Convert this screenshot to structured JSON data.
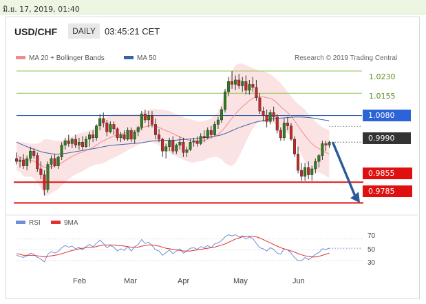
{
  "header": {
    "datetime": "มิ.ย. 17, 2019, 01:40"
  },
  "chart_title": {
    "pair": "USD/CHF",
    "timeframe": "DAILY",
    "time": "03:45:21 CET"
  },
  "legend": {
    "items": [
      {
        "label": "MA 20 + Bollinger Bands",
        "color": "#f08c8c"
      },
      {
        "label": "MA 50",
        "color": "#3a62a8"
      }
    ],
    "research": "Research © 2019 Trading Central"
  },
  "rsi_legend": {
    "items": [
      {
        "label": "RSI",
        "color": "#6f8ed8"
      },
      {
        "label": "9MA",
        "color": "#e03030"
      }
    ]
  },
  "levels": {
    "l1023": "1.0230",
    "l10155": "1.0155",
    "l1008": "1.0080",
    "l0999": "0.9990",
    "l09855": "0.9855",
    "l09785": "0.9785"
  },
  "months": [
    "Feb",
    "Mar",
    "Apr",
    "May",
    "Jun"
  ],
  "rsi_ticks": [
    "70",
    "50",
    "30"
  ],
  "colors": {
    "up": "#2e7d1e",
    "down": "#c62828",
    "band": "#fbd9d9",
    "ma20": "#f08c8c",
    "ma50": "#3a62a8",
    "res": "#8bc34a",
    "blue_line": "#2a5caa",
    "support": "#e01010",
    "dark": "#333333"
  },
  "chart_data": [
    {
      "type": "candlestick",
      "title": "USD/CHF DAILY",
      "ylim": [
        0.9765,
        1.0265
      ],
      "candles": [
        [
          0.9935,
          0.9955,
          0.9915,
          0.9925
        ],
        [
          0.9925,
          0.994,
          0.9905,
          0.993
        ],
        [
          0.993,
          0.995,
          0.99,
          0.991
        ],
        [
          0.991,
          0.9945,
          0.9895,
          0.9935
        ],
        [
          0.9935,
          0.9975,
          0.992,
          0.996
        ],
        [
          0.996,
          0.997,
          0.9935,
          0.9945
        ],
        [
          0.9945,
          0.9955,
          0.989,
          0.99
        ],
        [
          0.99,
          0.9925,
          0.9865,
          0.988
        ],
        [
          0.988,
          0.9895,
          0.981,
          0.983
        ],
        [
          0.983,
          0.9925,
          0.982,
          0.9915
        ],
        [
          0.9915,
          0.9945,
          0.99,
          0.9935
        ],
        [
          0.9935,
          0.995,
          0.9905,
          0.991
        ],
        [
          0.991,
          0.9945,
          0.99,
          0.994
        ],
        [
          0.994,
          0.999,
          0.993,
          0.998
        ],
        [
          0.998,
          1.0005,
          0.9965,
          0.9995
        ],
        [
          0.9995,
          1.0015,
          0.9975,
          0.9985
        ],
        [
          0.9985,
          1.0005,
          0.997,
          1.0
        ],
        [
          1.0,
          1.0015,
          0.997,
          0.998
        ],
        [
          0.998,
          1.0005,
          0.9965,
          0.999
        ],
        [
          0.999,
          1.001,
          0.9965,
          0.9975
        ],
        [
          0.9975,
          1.001,
          0.997,
          1.0
        ],
        [
          1.0,
          1.0025,
          0.9975,
          1.0015
        ],
        [
          1.0015,
          1.003,
          0.999,
          1.0005
        ],
        [
          1.0005,
          1.005,
          0.9995,
          1.0045
        ],
        [
          1.0045,
          1.0085,
          1.003,
          1.007
        ],
        [
          1.007,
          1.009,
          1.004,
          1.0055
        ],
        [
          1.0055,
          1.0065,
          1.001,
          1.0025
        ],
        [
          1.0025,
          1.006,
          1.002,
          1.005
        ],
        [
          1.005,
          1.006,
          1.0015,
          1.0035
        ],
        [
          1.0035,
          1.004,
          0.9995,
          1.0005
        ],
        [
          1.0005,
          1.0025,
          0.999,
          1.0015
        ],
        [
          1.0015,
          1.003,
          0.9995,
          1.0
        ],
        [
          1.0,
          1.004,
          0.9995,
          1.003
        ],
        [
          1.003,
          1.004,
          0.999,
          1.0
        ],
        [
          1.0,
          1.003,
          0.9985,
          1.0025
        ],
        [
          1.0025,
          1.0045,
          1.001,
          1.004
        ],
        [
          1.004,
          1.0095,
          1.003,
          1.0085
        ],
        [
          1.0085,
          1.01,
          1.0055,
          1.0065
        ],
        [
          1.0065,
          1.0095,
          1.004,
          1.008
        ],
        [
          1.008,
          1.0095,
          1.004,
          1.005
        ],
        [
          1.005,
          1.007,
          1.0,
          1.0015
        ],
        [
          1.0015,
          1.0035,
          0.999,
          1.0
        ],
        [
          1.0,
          1.0005,
          0.994,
          0.996
        ],
        [
          0.996,
          0.9985,
          0.9935,
          0.9975
        ],
        [
          0.9975,
          1.0005,
          0.996,
          0.9995
        ],
        [
          0.9995,
          1.001,
          0.995,
          0.996
        ],
        [
          0.996,
          0.9985,
          0.995,
          0.998
        ],
        [
          0.998,
          1.001,
          0.9965,
          0.999
        ],
        [
          0.999,
          1.0005,
          0.994,
          0.9955
        ],
        [
          0.9955,
          0.9975,
          0.994,
          0.9965
        ],
        [
          0.9965,
          1.0,
          0.996,
          0.999
        ],
        [
          0.999,
          1.0005,
          0.9975,
          0.9995
        ],
        [
          0.9995,
          1.001,
          0.9975,
          0.9985
        ],
        [
          0.9985,
          1.002,
          0.998,
          1.001
        ],
        [
          1.001,
          1.003,
          0.999,
          1.0005
        ],
        [
          1.0005,
          1.004,
          1.0,
          1.003
        ],
        [
          1.003,
          1.0045,
          1.0005,
          1.0015
        ],
        [
          1.0015,
          1.006,
          1.001,
          1.005
        ],
        [
          1.005,
          1.0075,
          1.0035,
          1.0065
        ],
        [
          1.0065,
          1.011,
          1.0055,
          1.01
        ],
        [
          1.01,
          1.017,
          1.009,
          1.016
        ],
        [
          1.016,
          1.021,
          1.0145,
          1.0195
        ],
        [
          1.0195,
          1.023,
          1.017,
          1.0185
        ],
        [
          1.0185,
          1.0215,
          1.0165,
          1.02
        ],
        [
          1.02,
          1.022,
          1.017,
          1.018
        ],
        [
          1.018,
          1.021,
          1.016,
          1.0195
        ],
        [
          1.0195,
          1.0215,
          1.015,
          1.0165
        ],
        [
          1.0165,
          1.02,
          1.015,
          1.0185
        ],
        [
          1.0185,
          1.021,
          1.016,
          1.0175
        ],
        [
          1.0175,
          1.02,
          1.013,
          1.014
        ],
        [
          1.014,
          1.0155,
          1.0085,
          1.0095
        ],
        [
          1.0095,
          1.011,
          1.006,
          1.008
        ],
        [
          1.008,
          1.01,
          1.004,
          1.006
        ],
        [
          1.006,
          1.01,
          1.005,
          1.009
        ],
        [
          1.009,
          1.011,
          1.006,
          1.0075
        ],
        [
          1.0075,
          1.0085,
          1.002,
          1.003
        ],
        [
          1.003,
          1.004,
          0.9995,
          1.0005
        ],
        [
          1.0005,
          1.007,
          0.9995,
          1.0055
        ],
        [
          1.0055,
          1.0075,
          1.003,
          1.0045
        ],
        [
          1.0045,
          1.0055,
          0.9995,
          1.0
        ],
        [
          1.0,
          1.001,
          0.994,
          0.995
        ],
        [
          0.995,
          0.9975,
          0.9885,
          0.9895
        ],
        [
          0.9895,
          0.992,
          0.986,
          0.9875
        ],
        [
          0.9875,
          0.992,
          0.986,
          0.9905
        ],
        [
          0.9905,
          0.9925,
          0.9865,
          0.988
        ],
        [
          0.988,
          0.991,
          0.986,
          0.99
        ],
        [
          0.99,
          0.9935,
          0.9885,
          0.9925
        ],
        [
          0.9925,
          0.995,
          0.9905,
          0.9945
        ],
        [
          0.9945,
          0.9995,
          0.993,
          0.9985
        ],
        [
          0.9985,
          0.9995,
          0.996,
          0.998
        ],
        [
          0.998,
          0.9995,
          0.997,
          0.999
        ]
      ],
      "ma20": [
        0.9945,
        0.994,
        0.9932,
        0.993,
        0.993,
        0.9926,
        0.992,
        0.9912,
        0.9905,
        0.9905,
        0.9908,
        0.991,
        0.9913,
        0.992,
        0.9928,
        0.9935,
        0.9942,
        0.9948,
        0.9953,
        0.9957,
        0.9962,
        0.9968,
        0.9973,
        0.998,
        0.9988,
        0.9995,
        1.0,
        1.0006,
        1.0011,
        1.0014,
        1.0017,
        1.002,
        1.0024,
        1.0027,
        1.003,
        1.0033,
        1.0038,
        1.0042,
        1.0045,
        1.0046,
        1.0044,
        1.004,
        1.0034,
        1.0029,
        1.0025,
        1.0019,
        1.0013,
        1.0008,
        1.0003,
        0.9998,
        0.9995,
        0.9993,
        0.9992,
        0.9993,
        0.9995,
        1.0,
        1.0004,
        1.001,
        1.0017,
        1.0026,
        1.004,
        1.0056,
        1.007,
        1.0085,
        1.0098,
        1.011,
        1.012,
        1.013,
        1.0138,
        1.0143,
        1.0145,
        1.0143,
        1.014,
        1.0138,
        1.0132,
        1.0122,
        1.011,
        1.01,
        1.009,
        1.0078,
        1.0062,
        1.0045,
        1.0028,
        1.0012,
        0.9998,
        0.9985,
        0.9975,
        0.9968,
        0.9962,
        0.9955,
        0.995
      ],
      "ma50": [
        0.999,
        0.9985,
        0.998,
        0.9975,
        0.997,
        0.9966,
        0.9962,
        0.9958,
        0.9955,
        0.9953,
        0.9951,
        0.995,
        0.995,
        0.9951,
        0.9952,
        0.9954,
        0.9956,
        0.9958,
        0.996,
        0.9962,
        0.9964,
        0.9966,
        0.9968,
        0.997,
        0.9972,
        0.9975,
        0.9977,
        0.9979,
        0.998,
        0.9981,
        0.9982,
        0.9983,
        0.9984,
        0.9985,
        0.9986,
        0.9987,
        0.9988,
        0.999,
        0.9992,
        0.9994,
        0.9995,
        0.9996,
        0.9996,
        0.9996,
        0.9996,
        0.9996,
        0.9997,
        0.9998,
        0.9999,
        1.0,
        1.0001,
        1.0002,
        1.0003,
        1.0004,
        1.0005,
        1.0006,
        1.0008,
        1.001,
        1.0012,
        1.0015,
        1.0019,
        1.0024,
        1.0029,
        1.0034,
        1.0039,
        1.0043,
        1.0047,
        1.0051,
        1.0055,
        1.0058,
        1.0061,
        1.0063,
        1.0065,
        1.0067,
        1.0069,
        1.007,
        1.0071,
        1.0072,
        1.0073,
        1.0074,
        1.0075,
        1.0075,
        1.0075,
        1.0074,
        1.0073,
        1.0072,
        1.007,
        1.0068,
        1.0066,
        1.0064,
        1.0062
      ],
      "band_upper": [
        0.9995,
        0.999,
        0.999,
        0.9988,
        0.9985,
        0.9985,
        0.9985,
        0.999,
        1.0,
        1.0,
        0.9998,
        0.9995,
        0.9995,
        0.9995,
        1.0,
        1.0005,
        1.001,
        1.0015,
        1.002,
        1.0022,
        1.0025,
        1.003,
        1.0035,
        1.0045,
        1.006,
        1.007,
        1.0075,
        1.008,
        1.0085,
        1.0085,
        1.0085,
        1.0085,
        1.0085,
        1.0085,
        1.0085,
        1.0085,
        1.009,
        1.0095,
        1.01,
        1.0102,
        1.0102,
        1.01,
        1.01,
        1.0098,
        1.0095,
        1.009,
        1.0085,
        1.008,
        1.0075,
        1.007,
        1.0068,
        1.0065,
        1.006,
        1.006,
        1.0062,
        1.0065,
        1.007,
        1.008,
        1.0095,
        1.012,
        1.016,
        1.02,
        1.023,
        1.025,
        1.0255,
        1.0255,
        1.025,
        1.0245,
        1.024,
        1.0235,
        1.023,
        1.023,
        1.0225,
        1.022,
        1.021,
        1.02,
        1.019,
        1.0175,
        1.016,
        1.0145,
        1.013,
        1.012,
        1.011,
        1.01,
        1.0085,
        1.007,
        1.006,
        1.005,
        1.004,
        1.0035,
        1.003
      ],
      "band_lower": [
        0.9895,
        0.989,
        0.9875,
        0.9872,
        0.9875,
        0.9868,
        0.9855,
        0.9834,
        0.981,
        0.981,
        0.9818,
        0.9825,
        0.9831,
        0.9845,
        0.9856,
        0.9865,
        0.9874,
        0.9881,
        0.9886,
        0.9892,
        0.9899,
        0.9906,
        0.9911,
        0.9915,
        0.9916,
        0.992,
        0.9925,
        0.9932,
        0.9937,
        0.9943,
        0.9949,
        0.9955,
        0.9963,
        0.9969,
        0.9975,
        0.9981,
        0.9986,
        0.9989,
        0.999,
        0.999,
        0.9986,
        0.998,
        0.9968,
        0.996,
        0.9955,
        0.9948,
        0.9941,
        0.9936,
        0.9931,
        0.9926,
        0.9922,
        0.9921,
        0.9924,
        0.9926,
        0.9928,
        0.9935,
        0.9938,
        0.994,
        0.9939,
        0.9932,
        0.992,
        0.9912,
        0.991,
        0.992,
        0.9941,
        0.9965,
        0.999,
        1.0015,
        1.0036,
        1.0051,
        1.006,
        1.0056,
        1.0055,
        1.0056,
        1.0054,
        1.0044,
        1.003,
        1.0025,
        1.002,
        1.0011,
        0.9994,
        0.997,
        0.9946,
        0.9924,
        0.9911,
        0.99,
        0.989,
        0.9886,
        0.9884,
        0.9875,
        0.987
      ],
      "levels": [
        1.023,
        1.0155,
        1.008,
        0.999,
        0.9855,
        0.9785
      ],
      "projection": {
        "from": 0.999,
        "to": 0.9785
      },
      "x_tick_labels": [
        "Feb",
        "Mar",
        "Apr",
        "May",
        "Jun"
      ]
    },
    {
      "type": "line",
      "series": [
        {
          "name": "RSI",
          "values": [
            40,
            38,
            36,
            39,
            44,
            42,
            36,
            33,
            28,
            42,
            47,
            44,
            47,
            54,
            58,
            55,
            57,
            52,
            55,
            50,
            56,
            60,
            56,
            62,
            68,
            62,
            54,
            58,
            55,
            48,
            52,
            49,
            56,
            48,
            56,
            60,
            69,
            62,
            64,
            58,
            50,
            48,
            40,
            45,
            50,
            43,
            48,
            52,
            44,
            48,
            53,
            54,
            51,
            56,
            54,
            58,
            54,
            61,
            63,
            67,
            74,
            78,
            76,
            78,
            74,
            76,
            70,
            74,
            71,
            62,
            54,
            52,
            48,
            54,
            51,
            44,
            42,
            52,
            50,
            44,
            36,
            30,
            30,
            36,
            32,
            36,
            42,
            45,
            52,
            51,
            53
          ]
        },
        {
          "name": "9MA",
          "values": [
            43,
            42,
            40,
            40,
            40,
            40,
            39,
            38,
            37,
            38,
            39,
            40,
            41,
            43,
            45,
            47,
            49,
            50,
            52,
            53,
            54,
            55,
            55,
            56,
            58,
            59,
            59,
            59,
            59,
            58,
            58,
            57,
            56,
            55,
            55,
            55,
            57,
            58,
            59,
            59,
            58,
            57,
            55,
            53,
            52,
            51,
            50,
            49,
            48,
            48,
            48,
            49,
            50,
            51,
            52,
            53,
            54,
            55,
            57,
            59,
            61,
            64,
            67,
            70,
            72,
            74,
            75,
            75,
            75,
            74,
            72,
            69,
            66,
            63,
            60,
            57,
            54,
            52,
            50,
            48,
            46,
            43,
            41,
            39,
            38,
            37,
            37,
            38,
            40,
            42,
            44
          ]
        }
      ],
      "ylim": [
        15,
        85
      ],
      "y_ticks": [
        70,
        50,
        30
      ]
    }
  ]
}
